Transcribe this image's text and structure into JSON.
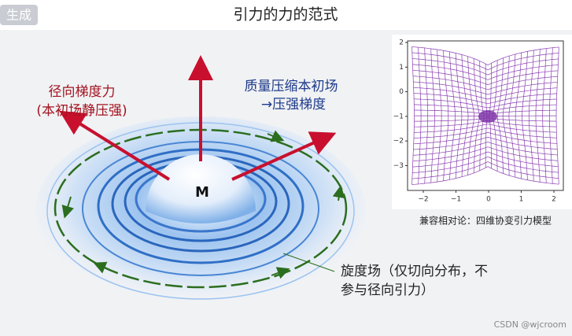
{
  "badge": "生成",
  "header": {
    "title": "引力的力的范式"
  },
  "illustration": {
    "center_label": "M",
    "radial_label": [
      "径向梯度力",
      "(本初场静压强)"
    ],
    "compression_label": [
      "质量压缩本初场",
      "→压强梯度"
    ],
    "curl_label": [
      "旋度场（仅切向分布，不",
      "参与径向引力）"
    ]
  },
  "inset": {
    "xticks": [
      "−2",
      "−1",
      "0",
      "1",
      "2"
    ],
    "yticks": [
      "2",
      "1",
      "0",
      "−1",
      "−2",
      "−3"
    ],
    "caption": "兼容相对论：四维协变引力模型"
  },
  "watermark": "CSDN @wjcroom"
}
